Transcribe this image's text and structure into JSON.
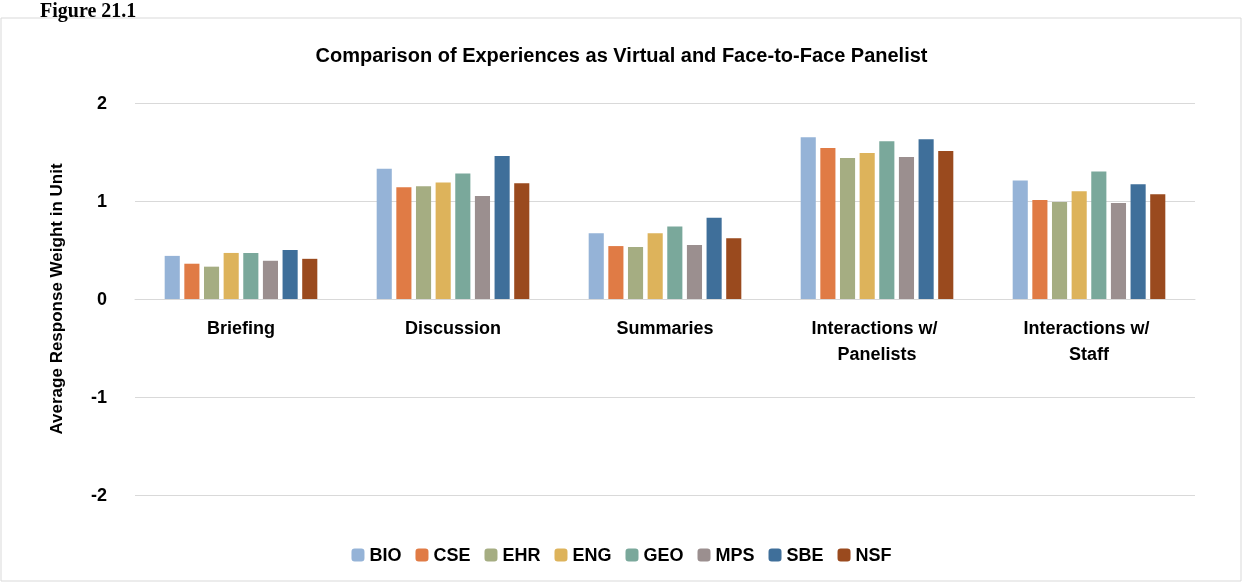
{
  "chart_data": {
    "type": "bar",
    "title": "Comparison of Experiences as Virtual and Face-to-Face Panelist",
    "ylabel": "Average Response Weight in Unit",
    "annotations": [
      "Figure 21.1"
    ],
    "categories": [
      "Briefing",
      "Discussion",
      "Summaries",
      "Interactions w/ Panelists",
      "Interactions w/ Staff"
    ],
    "series": [
      {
        "name": "BIO",
        "color": "#95b3d7",
        "values": [
          0.44,
          1.33,
          0.67,
          1.65,
          1.21
        ]
      },
      {
        "name": "CSE",
        "color": "#e07b45",
        "values": [
          0.36,
          1.14,
          0.54,
          1.54,
          1.01
        ]
      },
      {
        "name": "EHR",
        "color": "#a5ad82",
        "values": [
          0.33,
          1.15,
          0.53,
          1.44,
          0.99
        ]
      },
      {
        "name": "ENG",
        "color": "#ddb35b",
        "values": [
          0.47,
          1.19,
          0.67,
          1.49,
          1.1
        ]
      },
      {
        "name": "GEO",
        "color": "#7aa89b",
        "values": [
          0.47,
          1.28,
          0.74,
          1.61,
          1.3
        ]
      },
      {
        "name": "MPS",
        "color": "#9b8f8f",
        "values": [
          0.39,
          1.05,
          0.55,
          1.45,
          0.98
        ]
      },
      {
        "name": "SBE",
        "color": "#3f6f9a",
        "values": [
          0.5,
          1.46,
          0.83,
          1.63,
          1.17
        ]
      },
      {
        "name": "NSF",
        "color": "#9a4a1e",
        "values": [
          0.41,
          1.18,
          0.62,
          1.51,
          1.07
        ]
      }
    ],
    "ylim": [
      -2,
      2
    ],
    "yticks": [
      -2,
      -1,
      0,
      1,
      2
    ],
    "grid": "y",
    "legend": "bottom"
  }
}
